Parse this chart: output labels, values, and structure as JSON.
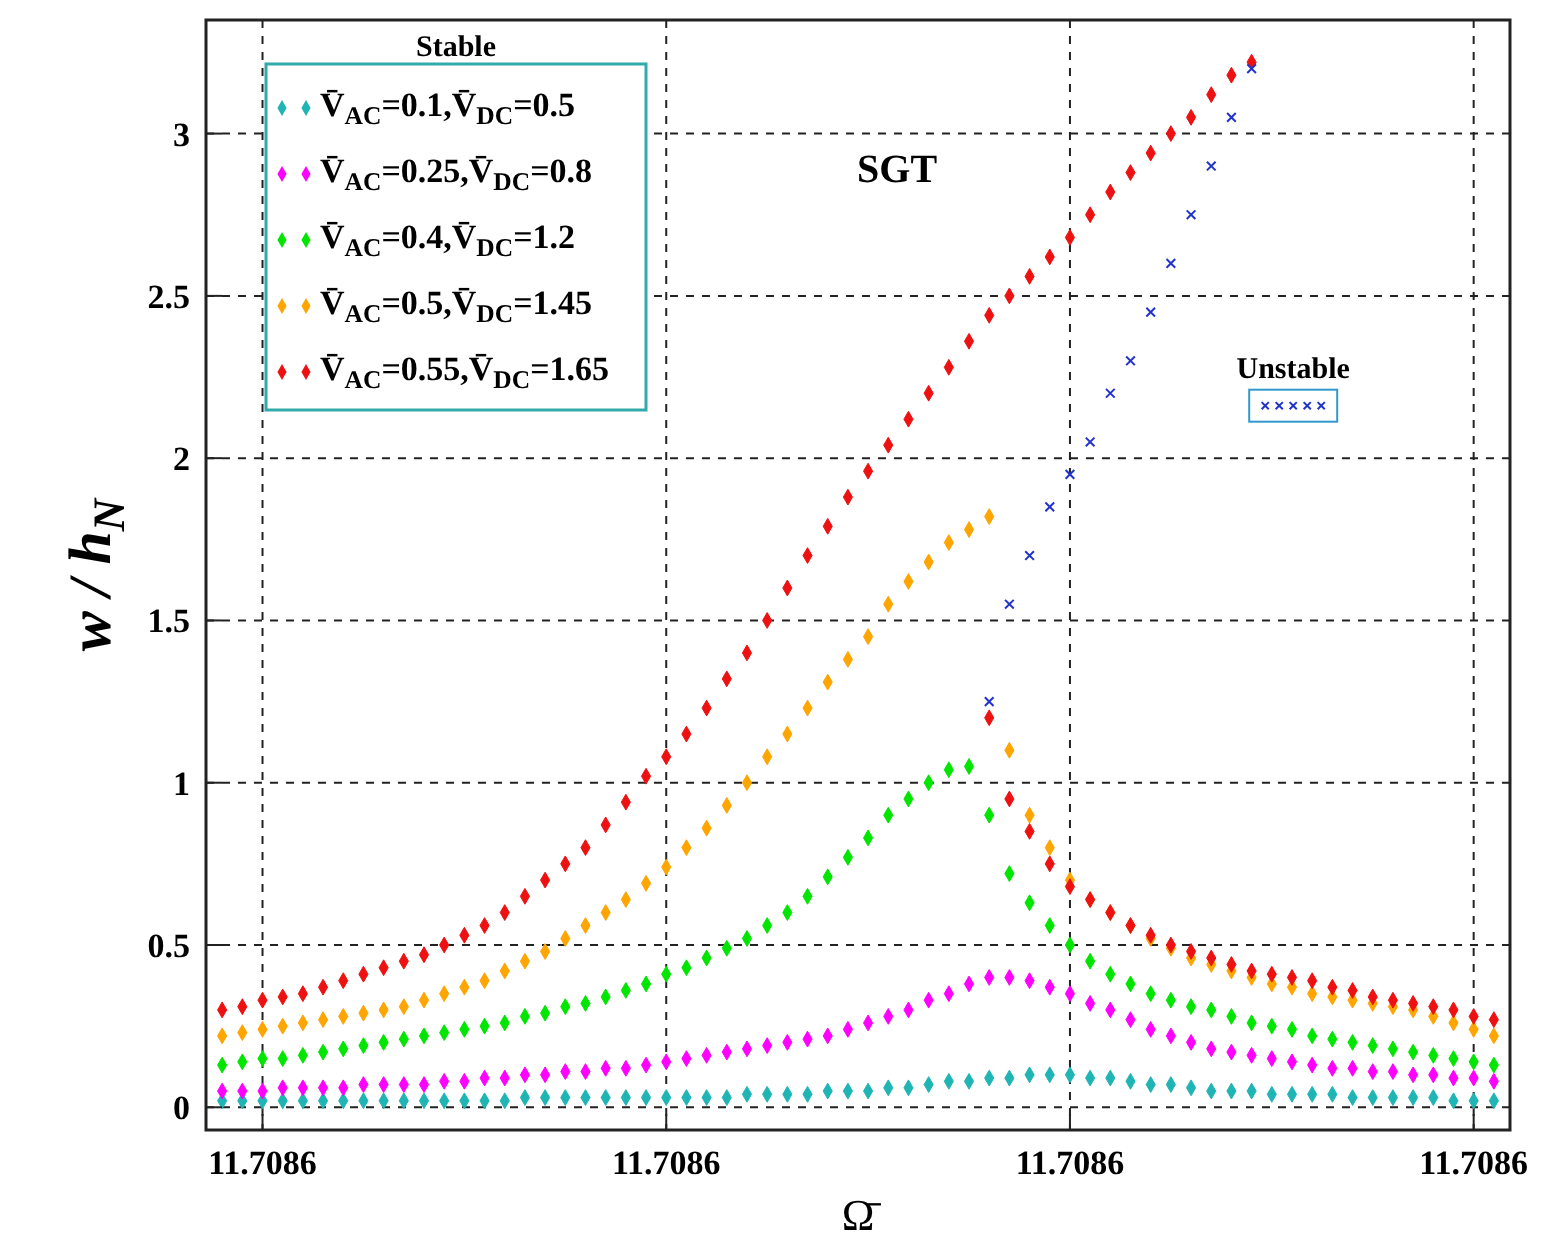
{
  "chart_data": {
    "type": "scatter",
    "xlabel": "Ω̄",
    "ylabel": "w / h$_{N}$",
    "legend_title": "Stable",
    "annotations": [
      "SGT"
    ],
    "categories": [
      null,
      null,
      "11.7086",
      null,
      null,
      null,
      null,
      null,
      null,
      null,
      null,
      null,
      null,
      null,
      null,
      null,
      null,
      null,
      null,
      null,
      null,
      null,
      "11.7086",
      null,
      null,
      null,
      null,
      null,
      null,
      null,
      null,
      null,
      null,
      null,
      null,
      null,
      null,
      null,
      null,
      null,
      null,
      null,
      "11.7086",
      null,
      null,
      null,
      null,
      null,
      null,
      null,
      null,
      null,
      null,
      null,
      null,
      null,
      null,
      null,
      null,
      null,
      null,
      null,
      "11.7086",
      null
    ],
    "ylim": [
      -0.07,
      3.35
    ],
    "yticks": [
      0,
      0.5,
      1,
      1.5,
      2,
      2.5,
      3
    ],
    "grid": true,
    "legend": "top left",
    "marker": "diamond",
    "series": [
      {
        "name": "V̄$_{AC}$=0.1,V̄$_{DC}$=0.5",
        "color": "#1fb5b5",
        "values": [
          0.02,
          0.02,
          0.02,
          0.02,
          0.02,
          0.02,
          0.02,
          0.02,
          0.02,
          0.02,
          0.02,
          0.02,
          0.02,
          0.02,
          0.02,
          0.03,
          0.03,
          0.03,
          0.03,
          0.03,
          0.03,
          0.03,
          0.03,
          0.03,
          0.03,
          0.03,
          0.04,
          0.04,
          0.04,
          0.04,
          0.05,
          0.05,
          0.05,
          0.06,
          0.06,
          0.07,
          0.08,
          0.08,
          0.09,
          0.09,
          0.1,
          0.1,
          0.1,
          0.09,
          0.09,
          0.08,
          0.07,
          0.07,
          0.06,
          0.05,
          0.05,
          0.05,
          0.04,
          0.04,
          0.04,
          0.04,
          0.03,
          0.03,
          0.03,
          0.03,
          0.03,
          0.02,
          0.02,
          0.02
        ]
      },
      {
        "name": "V̄$_{AC}$=0.25,V̄$_{DC}$=0.8",
        "color": "#ff00ff",
        "values": [
          0.05,
          0.05,
          0.05,
          0.06,
          0.06,
          0.06,
          0.06,
          0.07,
          0.07,
          0.07,
          0.07,
          0.08,
          0.08,
          0.09,
          0.09,
          0.1,
          0.1,
          0.11,
          0.11,
          0.12,
          0.12,
          0.13,
          0.14,
          0.15,
          0.16,
          0.17,
          0.18,
          0.19,
          0.2,
          0.21,
          0.22,
          0.24,
          0.26,
          0.28,
          0.3,
          0.33,
          0.35,
          0.38,
          0.4,
          0.4,
          0.39,
          0.37,
          0.35,
          0.32,
          0.3,
          0.27,
          0.24,
          0.22,
          0.2,
          0.18,
          0.17,
          0.16,
          0.15,
          0.14,
          0.13,
          0.12,
          0.12,
          0.11,
          0.11,
          0.1,
          0.1,
          0.09,
          0.09,
          0.08
        ]
      },
      {
        "name": "V̄$_{AC}$=0.4,V̄$_{DC}$=1.2",
        "color": "#00e600",
        "values": [
          0.13,
          0.14,
          0.15,
          0.15,
          0.16,
          0.17,
          0.18,
          0.19,
          0.2,
          0.21,
          0.22,
          0.23,
          0.24,
          0.25,
          0.26,
          0.28,
          0.29,
          0.31,
          0.32,
          0.34,
          0.36,
          0.38,
          0.41,
          0.43,
          0.46,
          0.49,
          0.52,
          0.56,
          0.6,
          0.65,
          0.71,
          0.77,
          0.83,
          0.9,
          0.95,
          1.0,
          1.04,
          1.05,
          0.9,
          0.72,
          0.63,
          0.56,
          0.5,
          0.45,
          0.41,
          0.38,
          0.35,
          0.33,
          0.31,
          0.3,
          0.28,
          0.26,
          0.25,
          0.24,
          0.22,
          0.21,
          0.2,
          0.19,
          0.18,
          0.17,
          0.16,
          0.15,
          0.14,
          0.13
        ]
      },
      {
        "name": "V̄$_{AC}$=0.5,V̄$_{DC}$=1.45",
        "color": "#ffa500",
        "values": [
          0.22,
          0.23,
          0.24,
          0.25,
          0.26,
          0.27,
          0.28,
          0.29,
          0.3,
          0.31,
          0.33,
          0.35,
          0.37,
          0.39,
          0.42,
          0.45,
          0.48,
          0.52,
          0.56,
          0.6,
          0.64,
          0.69,
          0.74,
          0.8,
          0.86,
          0.93,
          1.0,
          1.08,
          1.15,
          1.23,
          1.31,
          1.38,
          1.45,
          1.55,
          1.62,
          1.68,
          1.74,
          1.78,
          1.82,
          1.1,
          0.9,
          0.8,
          0.7,
          0.64,
          0.6,
          0.56,
          0.52,
          0.49,
          0.46,
          0.44,
          0.42,
          0.4,
          0.38,
          0.37,
          0.35,
          0.34,
          0.33,
          0.32,
          0.31,
          0.3,
          0.28,
          0.26,
          0.24,
          0.22
        ]
      },
      {
        "name": "V̄$_{AC}$=0.55,V̄$_{DC}$=1.65",
        "color": "#ee1111",
        "values": [
          0.3,
          0.31,
          0.33,
          0.34,
          0.35,
          0.37,
          0.39,
          0.41,
          0.43,
          0.45,
          0.47,
          0.5,
          0.53,
          0.56,
          0.6,
          0.65,
          0.7,
          0.75,
          0.8,
          0.87,
          0.94,
          1.02,
          1.08,
          1.15,
          1.23,
          1.32,
          1.4,
          1.5,
          1.6,
          1.7,
          1.79,
          1.88,
          1.96,
          2.04,
          2.12,
          2.2,
          2.28,
          2.36,
          2.44,
          2.5,
          2.56,
          2.62,
          2.68,
          2.75,
          2.82,
          2.88,
          2.94,
          3.0,
          3.05,
          3.12,
          3.18,
          3.22,
          null,
          null,
          null,
          null,
          null,
          null,
          null,
          null,
          null,
          null,
          null,
          null
        ]
      },
      {
        "color": "#ee1111",
        "values": [
          null,
          null,
          null,
          null,
          null,
          null,
          null,
          null,
          null,
          null,
          null,
          null,
          null,
          null,
          null,
          null,
          null,
          null,
          null,
          null,
          null,
          null,
          null,
          null,
          null,
          null,
          null,
          null,
          null,
          null,
          null,
          null,
          null,
          null,
          null,
          null,
          null,
          null,
          1.2,
          0.95,
          0.85,
          0.75,
          0.68,
          0.64,
          0.6,
          0.56,
          0.53,
          0.5,
          0.48,
          0.46,
          0.44,
          0.42,
          0.41,
          0.4,
          0.39,
          0.37,
          0.36,
          0.34,
          0.33,
          0.32,
          0.31,
          0.3,
          0.28,
          0.27
        ]
      },
      {
        "name": "Unstable",
        "color": "#2233cc",
        "marker": "cross",
        "values": [
          null,
          null,
          null,
          null,
          null,
          null,
          null,
          null,
          null,
          null,
          null,
          null,
          null,
          null,
          null,
          null,
          null,
          null,
          null,
          null,
          null,
          null,
          null,
          null,
          null,
          null,
          null,
          null,
          null,
          null,
          null,
          null,
          null,
          null,
          null,
          null,
          null,
          null,
          1.25,
          1.55,
          1.7,
          1.85,
          1.95,
          2.05,
          2.2,
          2.3,
          2.45,
          2.6,
          2.75,
          2.9,
          3.05,
          3.2,
          null,
          null,
          null,
          null,
          null,
          null,
          null,
          null,
          null,
          null,
          null,
          null
        ]
      }
    ]
  }
}
